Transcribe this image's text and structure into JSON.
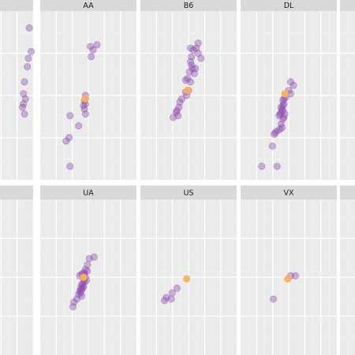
{
  "chart_data": {
    "type": "scatter",
    "facet_order": [
      "",
      "AA",
      "B6",
      "DL",
      "",
      "",
      "UA",
      "US",
      "VX",
      ""
    ],
    "colors": {
      "strip": "#d9d9d9",
      "panel": "#ebebeb",
      "grid_major": "#ffffff",
      "grid_minor": "#f4f4f4",
      "point": "#8e4bb0",
      "highlight": "#fbb05a"
    },
    "facets": [
      {
        "label": "",
        "points": [
          [
            0.96,
            0.9
          ],
          [
            0.98,
            0.76
          ],
          [
            0.95,
            0.72
          ],
          [
            0.94,
            0.67
          ],
          [
            0.91,
            0.58
          ],
          [
            0.9,
            0.51
          ],
          [
            0.92,
            0.48
          ],
          [
            0.9,
            0.45
          ],
          [
            0.89,
            0.43
          ],
          [
            0.91,
            0.39
          ]
        ],
        "highlight": []
      },
      {
        "label": "AA",
        "points": [
          [
            0.52,
            0.79
          ],
          [
            0.59,
            0.8
          ],
          [
            0.55,
            0.77
          ],
          [
            0.53,
            0.73
          ],
          [
            0.47,
            0.5
          ],
          [
            0.46,
            0.47
          ],
          [
            0.47,
            0.45
          ],
          [
            0.45,
            0.44
          ],
          [
            0.46,
            0.42
          ],
          [
            0.47,
            0.39
          ],
          [
            0.31,
            0.38
          ],
          [
            0.4,
            0.32
          ],
          [
            0.3,
            0.25
          ],
          [
            0.27,
            0.23
          ],
          [
            0.31,
            0.08
          ]
        ],
        "highlight": [
          [
            0.47,
            0.48
          ]
        ]
      },
      {
        "label": "B6",
        "points": [
          [
            0.6,
            0.81
          ],
          [
            0.52,
            0.78
          ],
          [
            0.58,
            0.78
          ],
          [
            0.55,
            0.77
          ],
          [
            0.6,
            0.75
          ],
          [
            0.53,
            0.73
          ],
          [
            0.63,
            0.72
          ],
          [
            0.52,
            0.7
          ],
          [
            0.53,
            0.68
          ],
          [
            0.54,
            0.66
          ],
          [
            0.57,
            0.66
          ],
          [
            0.51,
            0.64
          ],
          [
            0.56,
            0.63
          ],
          [
            0.49,
            0.6
          ],
          [
            0.47,
            0.59
          ],
          [
            0.52,
            0.58
          ],
          [
            0.5,
            0.53
          ],
          [
            0.47,
            0.52
          ],
          [
            0.48,
            0.5
          ],
          [
            0.43,
            0.48
          ],
          [
            0.41,
            0.46
          ],
          [
            0.4,
            0.43
          ],
          [
            0.38,
            0.41
          ],
          [
            0.37,
            0.4
          ],
          [
            0.34,
            0.37
          ],
          [
            0.39,
            0.38
          ]
        ],
        "highlight": [
          [
            0.49,
            0.53
          ]
        ]
      },
      {
        "label": "DL",
        "points": [
          [
            0.52,
            0.58
          ],
          [
            0.55,
            0.56
          ],
          [
            0.5,
            0.53
          ],
          [
            0.52,
            0.51
          ],
          [
            0.47,
            0.49
          ],
          [
            0.45,
            0.48
          ],
          [
            0.44,
            0.47
          ],
          [
            0.45,
            0.45
          ],
          [
            0.44,
            0.44
          ],
          [
            0.42,
            0.43
          ],
          [
            0.43,
            0.42
          ],
          [
            0.44,
            0.41
          ],
          [
            0.42,
            0.4
          ],
          [
            0.41,
            0.39
          ],
          [
            0.4,
            0.38
          ],
          [
            0.46,
            0.39
          ],
          [
            0.45,
            0.37
          ],
          [
            0.44,
            0.36
          ],
          [
            0.42,
            0.33
          ],
          [
            0.43,
            0.31
          ],
          [
            0.41,
            0.3
          ],
          [
            0.38,
            0.29
          ],
          [
            0.36,
            0.28
          ],
          [
            0.35,
            0.27
          ],
          [
            0.33,
            0.2
          ],
          [
            0.22,
            0.08
          ],
          [
            0.38,
            0.08
          ]
        ],
        "highlight": [
          [
            0.46,
            0.51
          ]
        ]
      },
      {
        "label": "",
        "points": [],
        "highlight": []
      },
      {
        "label": "",
        "points": [],
        "highlight": []
      },
      {
        "label": "UA",
        "points": [
          [
            0.56,
            0.63
          ],
          [
            0.51,
            0.62
          ],
          [
            0.49,
            0.58
          ],
          [
            0.47,
            0.55
          ],
          [
            0.49,
            0.54
          ],
          [
            0.45,
            0.53
          ],
          [
            0.46,
            0.52
          ],
          [
            0.43,
            0.52
          ],
          [
            0.41,
            0.51
          ],
          [
            0.47,
            0.5
          ],
          [
            0.45,
            0.49
          ],
          [
            0.48,
            0.48
          ],
          [
            0.46,
            0.47
          ],
          [
            0.44,
            0.46
          ],
          [
            0.43,
            0.45
          ],
          [
            0.45,
            0.44
          ],
          [
            0.44,
            0.43
          ],
          [
            0.42,
            0.43
          ],
          [
            0.43,
            0.42
          ],
          [
            0.41,
            0.41
          ],
          [
            0.42,
            0.4
          ],
          [
            0.4,
            0.39
          ],
          [
            0.43,
            0.38
          ],
          [
            0.38,
            0.36
          ],
          [
            0.35,
            0.34
          ],
          [
            0.34,
            0.31
          ]
        ],
        "highlight": [
          [
            0.45,
            0.5
          ]
        ]
      },
      {
        "label": "US",
        "points": [
          [
            0.38,
            0.43
          ],
          [
            0.33,
            0.4
          ],
          [
            0.27,
            0.37
          ],
          [
            0.32,
            0.36
          ],
          [
            0.25,
            0.35
          ]
        ],
        "highlight": [
          [
            0.48,
            0.49
          ]
        ]
      },
      {
        "label": "VX",
        "points": [
          [
            0.52,
            0.51
          ],
          [
            0.57,
            0.51
          ],
          [
            0.34,
            0.36
          ]
        ],
        "highlight": [
          [
            0.49,
            0.49
          ]
        ]
      },
      {
        "label": "",
        "points": [],
        "highlight": []
      }
    ]
  }
}
